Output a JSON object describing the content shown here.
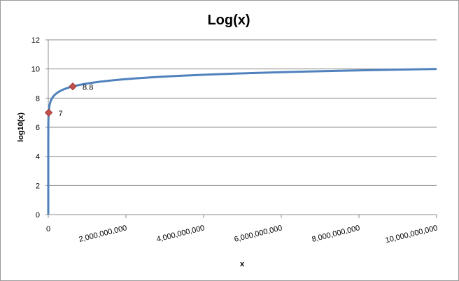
{
  "chart_data": {
    "type": "line",
    "title": "Log(x)",
    "xlabel": "x",
    "ylabel": "log10(x)",
    "xlim": [
      0,
      10000000000
    ],
    "ylim": [
      0,
      12
    ],
    "grid": "horizontal",
    "legend": "none",
    "y_ticks": [
      0,
      2,
      4,
      6,
      8,
      10,
      12
    ],
    "x_ticks": [
      0,
      2000000000,
      4000000000,
      6000000000,
      8000000000,
      10000000000
    ],
    "x_tick_labels": [
      "0",
      "2,000,000,000",
      "4,000,000,000",
      "6,000,000,000",
      "8,000,000,000",
      "10,000,000,000"
    ],
    "series": [
      {
        "color": "#4f81bd",
        "function": "log10(x)",
        "x": [
          1,
          10,
          100,
          1000,
          10000,
          100000,
          1000000,
          10000000,
          30000000,
          100000000,
          300000000,
          630957344,
          1000000000,
          2000000000,
          4000000000,
          6000000000,
          8000000000,
          10000000000
        ],
        "y": [
          0,
          1,
          2,
          3,
          4,
          5,
          6,
          7,
          7.48,
          8,
          8.48,
          8.8,
          9,
          9.3,
          9.6,
          9.78,
          9.9,
          10
        ]
      }
    ],
    "highlighted_points": [
      {
        "x": 10000000,
        "y": 7,
        "label": "7",
        "color": "#c0504d"
      },
      {
        "x": 630957344,
        "y": 8.8,
        "label": "8.8",
        "color": "#c0504d"
      }
    ]
  }
}
